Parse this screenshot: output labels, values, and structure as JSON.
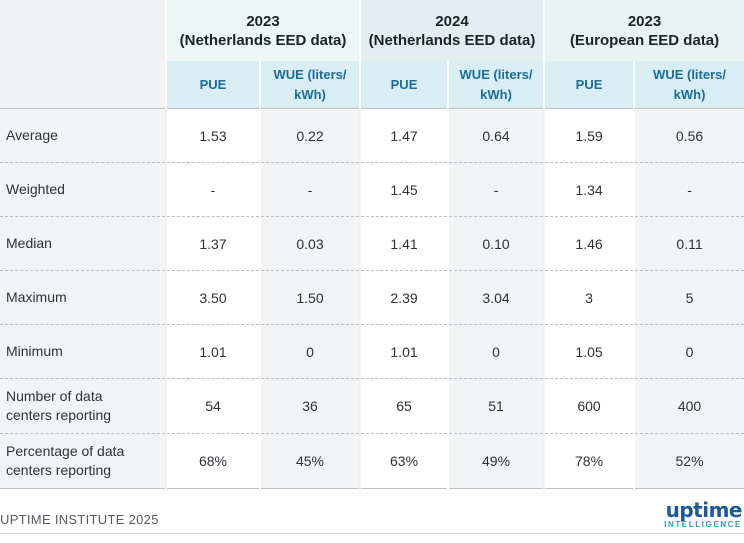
{
  "table": {
    "groups": [
      {
        "year": "2023",
        "source": "(Netherlands EED data)"
      },
      {
        "year": "2024",
        "source": "(Netherlands EED data)"
      },
      {
        "year": "2023",
        "source": "(European EED data)"
      }
    ],
    "columns": [
      "PUE",
      "WUE (liters/",
      "kWh)"
    ],
    "rows": [
      {
        "label": [
          "Average",
          ""
        ],
        "values": [
          "1.53",
          "0.22",
          "1.47",
          "0.64",
          "1.59",
          "0.56"
        ]
      },
      {
        "label": [
          "Weighted",
          ""
        ],
        "values": [
          "-",
          "-",
          "1.45",
          "-",
          "1.34",
          "-"
        ]
      },
      {
        "label": [
          "Median",
          ""
        ],
        "values": [
          "1.37",
          "0.03",
          "1.41",
          "0.10",
          "1.46",
          "0.11"
        ]
      },
      {
        "label": [
          "Maximum",
          ""
        ],
        "values": [
          "3.50",
          "1.50",
          "2.39",
          "3.04",
          "3",
          "5"
        ]
      },
      {
        "label": [
          "Minimum",
          ""
        ],
        "values": [
          "1.01",
          "0",
          "1.01",
          "0",
          "1.05",
          "0"
        ]
      },
      {
        "label": [
          "Number of data",
          "centers reporting"
        ],
        "values": [
          "54",
          "36",
          "65",
          "51",
          "600",
          "400"
        ]
      },
      {
        "label": [
          "Percentage of data",
          "centers reporting"
        ],
        "values": [
          "68%",
          "45%",
          "63%",
          "49%",
          "78%",
          "52%"
        ]
      }
    ]
  },
  "chart_data": {
    "type": "table",
    "title": "",
    "column_groups": [
      "2023 (Netherlands EED data)",
      "2024 (Netherlands EED data)",
      "2023 (European EED data)"
    ],
    "columns": [
      "PUE",
      "WUE (liters/kWh)"
    ],
    "row_labels": [
      "Average",
      "Weighted",
      "Median",
      "Maximum",
      "Minimum",
      "Number of data centers reporting",
      "Percentage of data centers reporting"
    ],
    "cells": [
      [
        "1.53",
        "0.22",
        "1.47",
        "0.64",
        "1.59",
        "0.56"
      ],
      [
        "-",
        "-",
        "1.45",
        "-",
        "1.34",
        "-"
      ],
      [
        "1.37",
        "0.03",
        "1.41",
        "0.10",
        "1.46",
        "0.11"
      ],
      [
        "3.50",
        "1.50",
        "2.39",
        "3.04",
        "3",
        "5"
      ],
      [
        "1.01",
        "0",
        "1.01",
        "0",
        "1.05",
        "0"
      ],
      [
        "54",
        "36",
        "65",
        "51",
        "600",
        "400"
      ],
      [
        "68%",
        "45%",
        "63%",
        "49%",
        "78%",
        "52%"
      ]
    ]
  },
  "footer": {
    "source": "UPTIME INSTITUTE 2025",
    "logo_word": "uptime",
    "logo_sub": "INTELLIGENCE"
  },
  "colors": {
    "header_blue": "#1d6d99",
    "subheader_bg": "#d8edf4",
    "logo_blue": "#1a5a99"
  }
}
